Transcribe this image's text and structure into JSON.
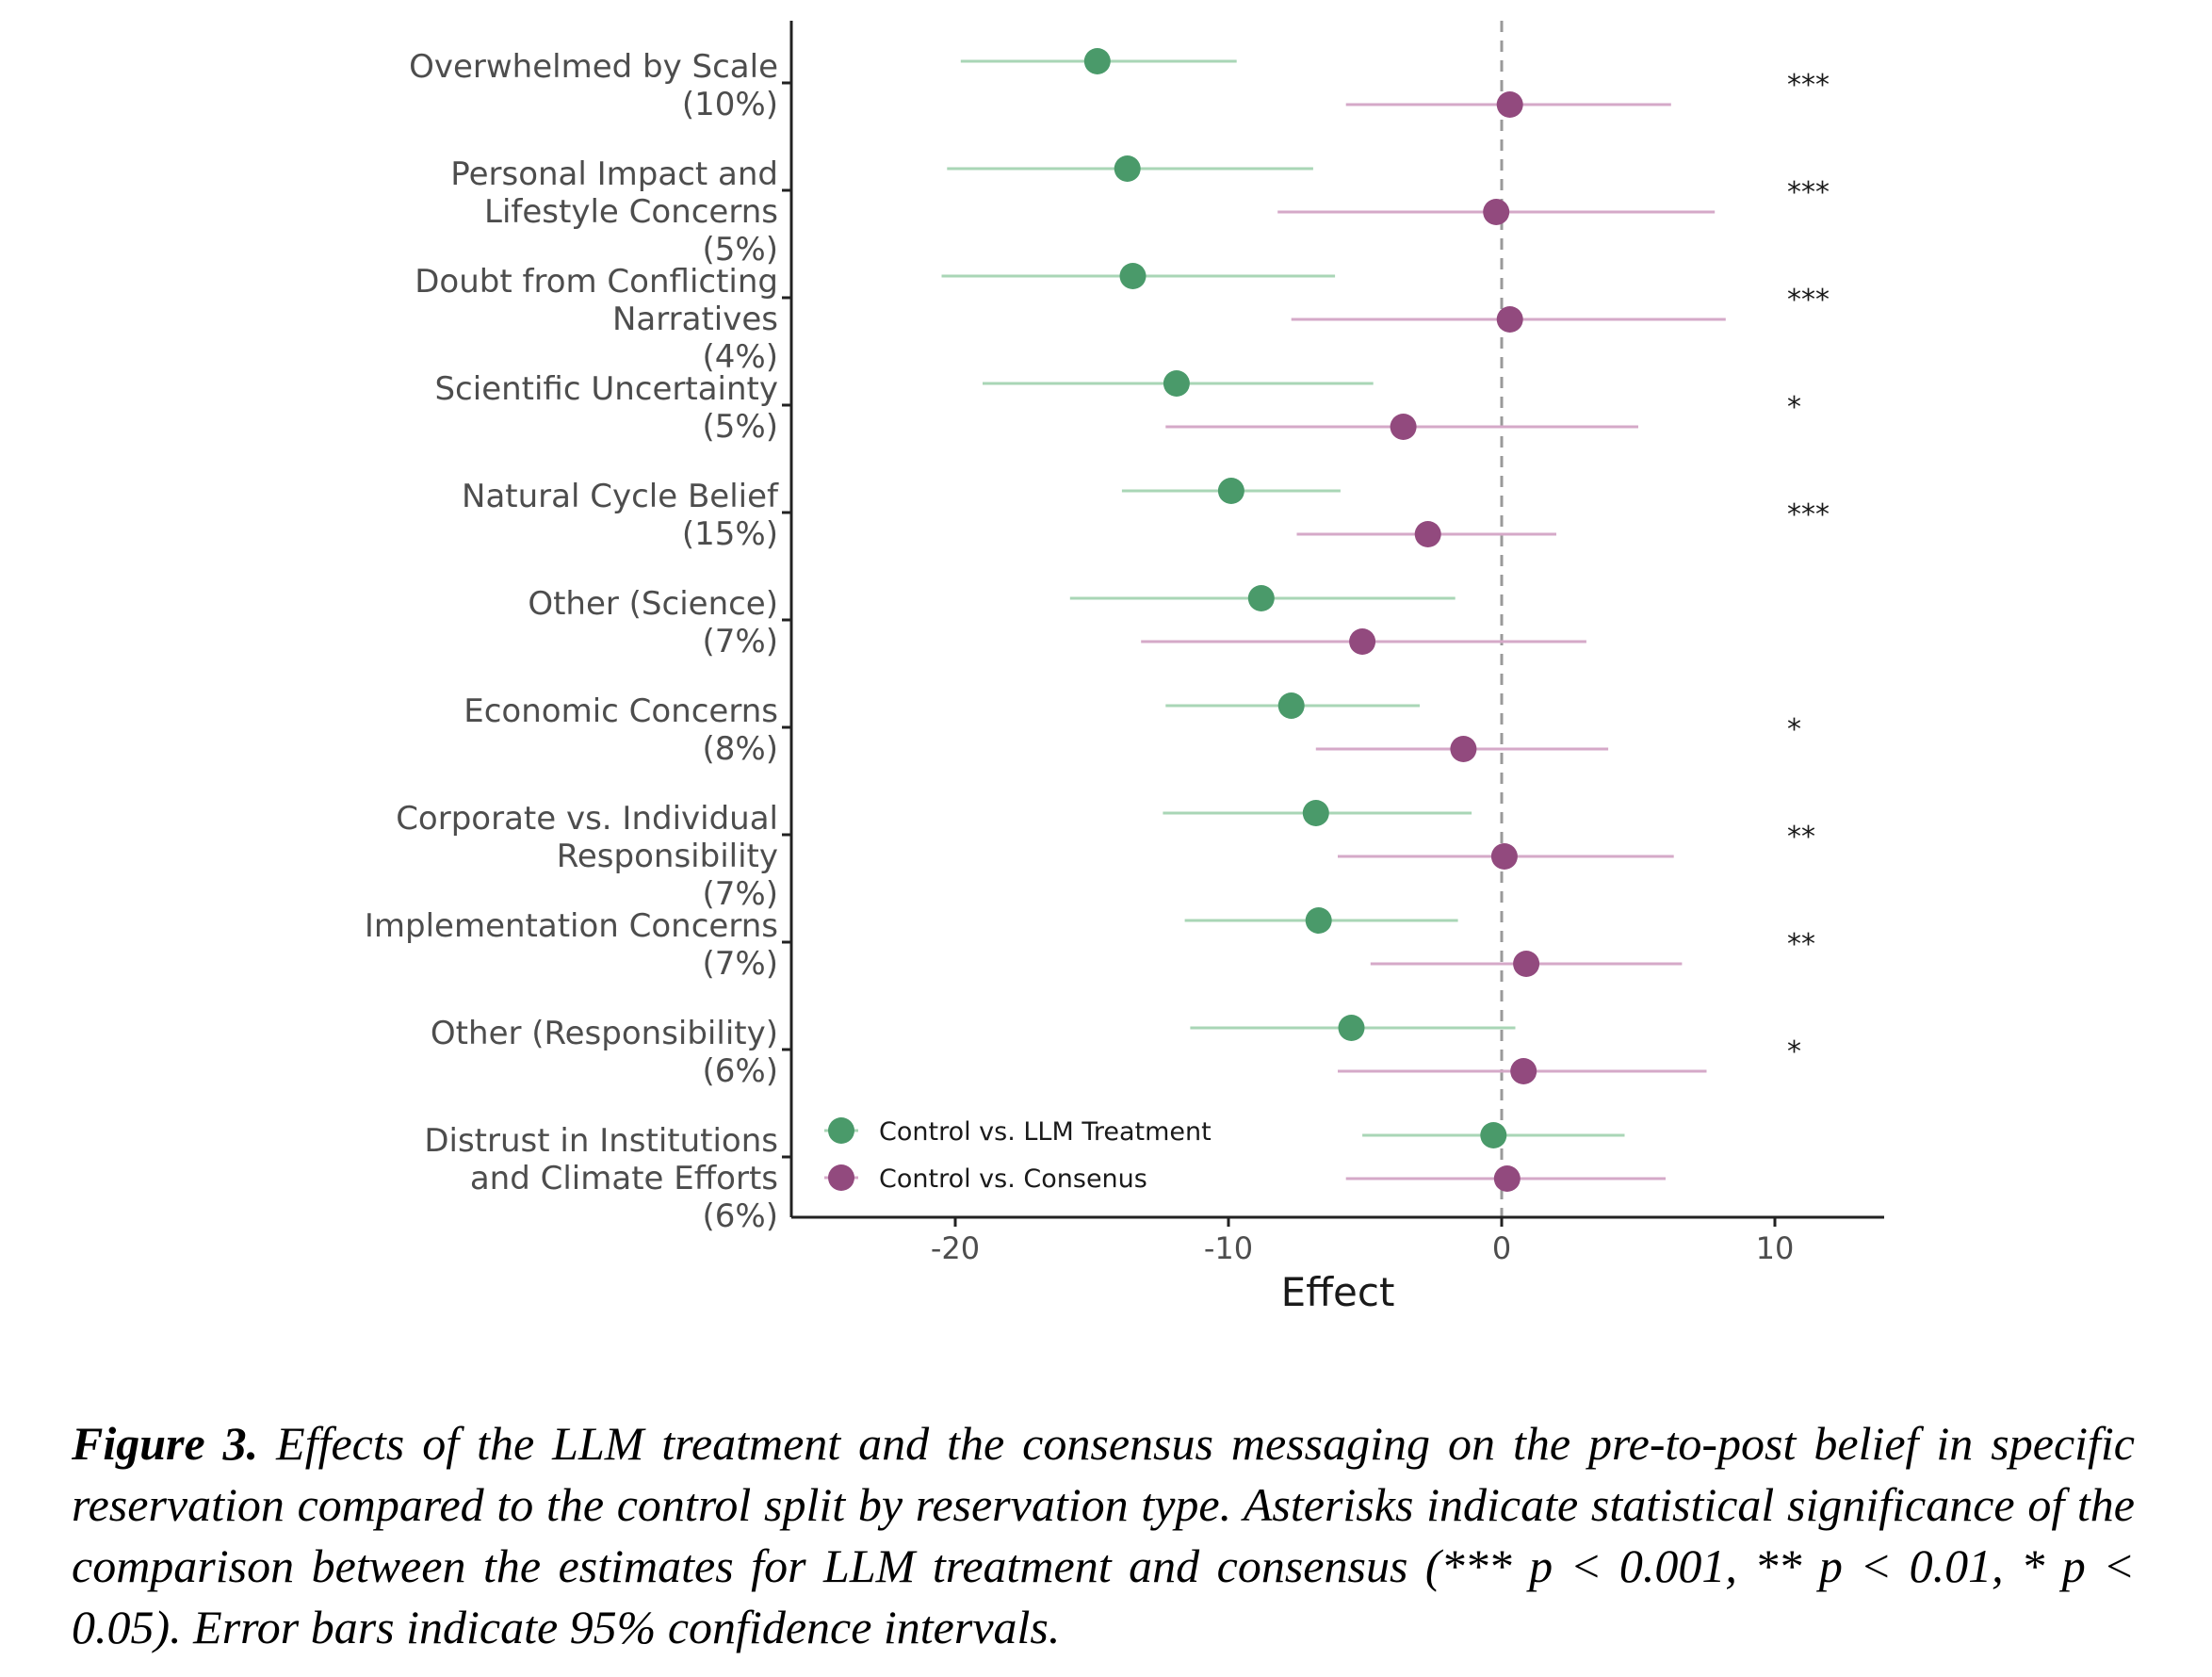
{
  "chart_data": {
    "type": "forest",
    "xlabel": "Effect",
    "xlim": [
      -26,
      14
    ],
    "xticks": [
      -20,
      -10,
      0,
      10
    ],
    "xtick_labels": [
      "-20",
      "-10",
      "0",
      "10"
    ],
    "reference_line": 0,
    "categories": [
      {
        "label_lines": [
          "Overwhelmed by Scale",
          "(10%)"
        ],
        "significance": "***"
      },
      {
        "label_lines": [
          "Personal Impact and",
          "Lifestyle Concerns",
          "(5%)"
        ],
        "significance": "***"
      },
      {
        "label_lines": [
          "Doubt from Conflicting",
          "Narratives",
          "(4%)"
        ],
        "significance": "***"
      },
      {
        "label_lines": [
          "Scientific Uncertainty",
          "(5%)"
        ],
        "significance": "*"
      },
      {
        "label_lines": [
          "Natural Cycle Belief",
          "(15%)"
        ],
        "significance": "***"
      },
      {
        "label_lines": [
          "Other (Science)",
          "(7%)"
        ],
        "significance": ""
      },
      {
        "label_lines": [
          "Economic Concerns",
          "(8%)"
        ],
        "significance": "*"
      },
      {
        "label_lines": [
          "Corporate vs. Individual",
          "Responsibility",
          "(7%)"
        ],
        "significance": "**"
      },
      {
        "label_lines": [
          "Implementation Concerns",
          "(7%)"
        ],
        "significance": "**"
      },
      {
        "label_lines": [
          "Other (Responsibility)",
          "(6%)"
        ],
        "significance": "*"
      },
      {
        "label_lines": [
          "Distrust in Institutions",
          "and Climate Efforts",
          "(6%)"
        ],
        "significance": ""
      }
    ],
    "series": [
      {
        "name": "Control vs. LLM Treatment",
        "color": "#4a9a6a",
        "bar_color": "#a9d6b6",
        "estimates": [
          -14.8,
          -13.7,
          -13.5,
          -11.9,
          -9.9,
          -8.8,
          -7.7,
          -6.8,
          -6.7,
          -5.5,
          -0.3
        ],
        "ci_low": [
          -19.8,
          -20.3,
          -20.5,
          -19.0,
          -13.9,
          -15.8,
          -12.3,
          -12.4,
          -11.6,
          -11.4,
          -5.1
        ],
        "ci_high": [
          -9.7,
          -6.9,
          -6.1,
          -4.7,
          -5.9,
          -1.7,
          -3.0,
          -1.1,
          -1.6,
          0.5,
          4.5
        ]
      },
      {
        "name": "Control vs. Consenus",
        "color": "#924a7e",
        "bar_color": "#d5a9c8",
        "estimates": [
          0.3,
          -0.2,
          0.3,
          -3.6,
          -2.7,
          -5.1,
          -1.4,
          0.1,
          0.9,
          0.8,
          0.2
        ],
        "ci_low": [
          -5.7,
          -8.2,
          -7.7,
          -12.3,
          -7.5,
          -13.2,
          -6.8,
          -6.0,
          -4.8,
          -6.0,
          -5.7
        ],
        "ci_high": [
          6.2,
          7.8,
          8.2,
          5.0,
          2.0,
          3.1,
          3.9,
          6.3,
          6.6,
          7.5,
          6.0
        ]
      }
    ],
    "legend_position": "bottom-left"
  },
  "caption": {
    "figure_label": "Figure 3.",
    "text": " Effects of the LLM treatment and the consensus messaging on the pre-to-post belief in specific reservation compared to the control split by reservation type. Asterisks indicate statistical significance of the comparison between the estimates for LLM treatment and consensus (*** p < 0.001, ** p < 0.01, *  p < 0.05). Error bars indicate 95% confidence intervals."
  }
}
